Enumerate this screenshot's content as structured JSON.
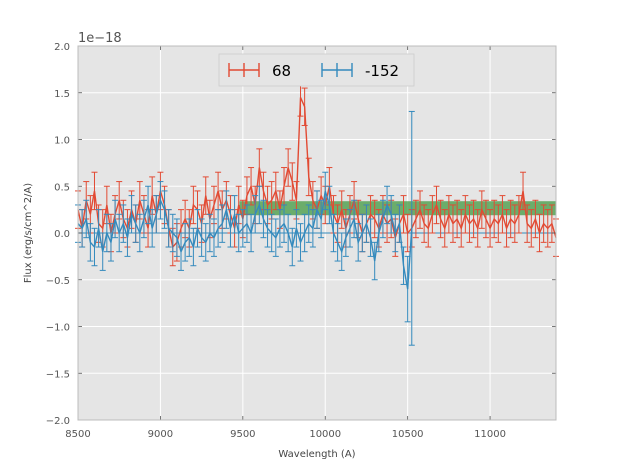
{
  "chart_data": {
    "type": "line",
    "xlabel": "Wavelength (A)",
    "ylabel": "Flux (erg/s/cm^2/A)",
    "offset_text": "1e−18",
    "xlim": [
      8500,
      11400
    ],
    "ylim": [
      -2.0,
      2.0
    ],
    "xticks": [
      8500,
      9000,
      9500,
      10000,
      10500,
      11000
    ],
    "xtick_labels": [
      "8500",
      "9000",
      "9500",
      "10000",
      "10500",
      "11000"
    ],
    "yticks": [
      2.0,
      1.5,
      1.0,
      0.5,
      0.0,
      -0.5,
      -1.0,
      -1.5,
      -2.0
    ],
    "ytick_labels": [
      "2.0",
      "1.5",
      "1.0",
      "0.5",
      "0.0",
      "−0.5",
      "−1.0",
      "−1.5",
      "−2.0"
    ],
    "grid": true,
    "legend_position": "top-center",
    "band": {
      "x_start": 9480,
      "x_end": 11400,
      "y_low": 0.19,
      "y_high": 0.34,
      "color": "#4c9f4c"
    },
    "zero_line": 0,
    "series": [
      {
        "name": "68",
        "color": "#e24a33",
        "x": [
          8500,
          8525,
          8550,
          8575,
          8600,
          8625,
          8650,
          8675,
          8700,
          8725,
          8750,
          8775,
          8800,
          8825,
          8850,
          8875,
          8900,
          8925,
          8950,
          8975,
          9000,
          9025,
          9050,
          9075,
          9100,
          9125,
          9150,
          9175,
          9200,
          9225,
          9250,
          9275,
          9300,
          9325,
          9350,
          9375,
          9400,
          9425,
          9450,
          9475,
          9500,
          9525,
          9550,
          9575,
          9600,
          9625,
          9650,
          9675,
          9700,
          9725,
          9750,
          9775,
          9800,
          9825,
          9850,
          9875,
          9900,
          9925,
          9950,
          9975,
          10000,
          10025,
          10050,
          10075,
          10100,
          10125,
          10150,
          10175,
          10200,
          10225,
          10250,
          10275,
          10300,
          10325,
          10350,
          10375,
          10400,
          10425,
          10450,
          10475,
          10500,
          10525,
          10550,
          10575,
          10600,
          10625,
          10650,
          10675,
          10700,
          10725,
          10750,
          10775,
          10800,
          10825,
          10850,
          10875,
          10900,
          10925,
          10950,
          10975,
          11000,
          11025,
          11050,
          11075,
          11100,
          11125,
          11150,
          11175,
          11200,
          11225,
          11250,
          11275,
          11300,
          11325,
          11350,
          11375,
          11400
        ],
        "y": [
          0.25,
          0.05,
          0.35,
          0.2,
          0.45,
          0.1,
          0.05,
          0.3,
          0.0,
          0.2,
          0.35,
          0.15,
          0.05,
          0.25,
          0.1,
          0.35,
          0.2,
          0.05,
          0.4,
          0.2,
          0.45,
          0.3,
          0.05,
          -0.15,
          -0.1,
          0.05,
          0.15,
          0.05,
          0.3,
          0.25,
          0.1,
          0.4,
          0.15,
          0.3,
          0.45,
          0.25,
          0.35,
          0.2,
          0.05,
          0.3,
          0.15,
          0.4,
          0.5,
          0.3,
          0.7,
          0.45,
          0.3,
          0.35,
          0.45,
          0.25,
          0.5,
          0.7,
          0.55,
          0.35,
          1.45,
          1.35,
          0.6,
          0.35,
          0.25,
          0.4,
          0.3,
          0.5,
          0.2,
          0.1,
          0.25,
          0.05,
          0.2,
          0.35,
          0.15,
          0.0,
          0.1,
          0.2,
          0.15,
          0.05,
          0.2,
          0.1,
          0.15,
          -0.05,
          0.1,
          0.2,
          0.0,
          0.05,
          0.15,
          0.25,
          0.1,
          0.05,
          0.2,
          0.3,
          0.15,
          0.05,
          0.2,
          0.1,
          0.15,
          0.05,
          0.2,
          0.1,
          0.15,
          0.05,
          0.25,
          0.15,
          0.05,
          0.15,
          0.1,
          0.2,
          0.05,
          0.15,
          0.1,
          0.2,
          0.45,
          0.1,
          0.05,
          0.15,
          0.0,
          0.1,
          0.05,
          0.1,
          -0.05
        ],
        "err": 0.2
      },
      {
        "name": "-152",
        "color": "#348abd",
        "x": [
          8500,
          8525,
          8550,
          8575,
          8600,
          8625,
          8650,
          8675,
          8700,
          8725,
          8750,
          8775,
          8800,
          8825,
          8850,
          8875,
          8900,
          8925,
          8950,
          8975,
          9000,
          9025,
          9050,
          9075,
          9100,
          9125,
          9150,
          9175,
          9200,
          9225,
          9250,
          9275,
          9300,
          9325,
          9350,
          9375,
          9400,
          9425,
          9450,
          9475,
          9500,
          9525,
          9550,
          9575,
          9600,
          9625,
          9650,
          9675,
          9700,
          9725,
          9750,
          9775,
          9800,
          9825,
          9850,
          9875,
          9900,
          9925,
          9950,
          9975,
          10000,
          10025,
          10050,
          10075,
          10100,
          10125,
          10150,
          10175,
          10200,
          10225,
          10250,
          10275,
          10300,
          10325,
          10350,
          10375,
          10400,
          10425,
          10450,
          10475,
          10500,
          10525
        ],
        "y": [
          0.1,
          0.05,
          0.15,
          -0.1,
          -0.15,
          0.05,
          -0.2,
          0.0,
          -0.1,
          0.15,
          0.0,
          0.1,
          -0.05,
          0.2,
          0.1,
          0.0,
          0.15,
          0.3,
          0.05,
          0.2,
          0.35,
          0.25,
          0.05,
          0.0,
          -0.05,
          -0.2,
          -0.1,
          -0.05,
          -0.15,
          0.05,
          -0.05,
          -0.1,
          0.0,
          -0.05,
          0.05,
          0.1,
          0.25,
          0.05,
          0.2,
          0.0,
          0.05,
          0.1,
          0.0,
          0.2,
          0.3,
          0.15,
          0.05,
          0.0,
          -0.05,
          0.05,
          0.1,
          0.0,
          -0.15,
          0.05,
          -0.1,
          0.0,
          0.1,
          0.05,
          0.25,
          0.15,
          0.45,
          0.3,
          0.0,
          -0.1,
          -0.2,
          -0.05,
          0.05,
          0.15,
          -0.1,
          0.0,
          0.1,
          -0.05,
          -0.3,
          0.0,
          0.15,
          0.3,
          0.2,
          0.0,
          0.1,
          -0.35,
          -0.6,
          0.05
        ],
        "err": 0.2,
        "err_override": {
          "10525": 1.25,
          "10500": 0.35
        }
      }
    ]
  }
}
